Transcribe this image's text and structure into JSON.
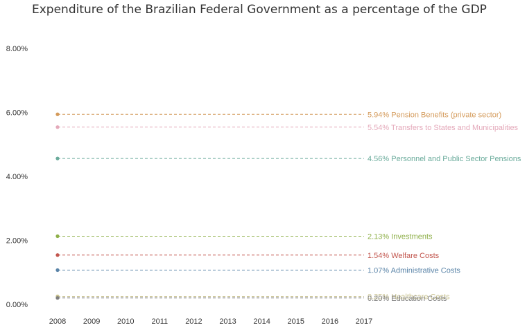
{
  "chart_data": {
    "type": "line",
    "title": "Expenditure of the Brazilian Federal Government as a percentage of the GDP",
    "xlabel": "",
    "ylabel": "",
    "x": [
      "2008",
      "2009",
      "2010",
      "2011",
      "2012",
      "2013",
      "2014",
      "2015",
      "2016",
      "2017"
    ],
    "ylim": [
      0,
      8
    ],
    "y_ticks": [
      "0.00%",
      "2.00%",
      "4.00%",
      "6.00%",
      "8.00%"
    ],
    "grid": false,
    "legend": "none",
    "series": [
      {
        "name": "Pension Benefits (private sector)",
        "label": "5.94% Pension Benefits (private sector)",
        "value": 5.94,
        "color": "#d49a5a",
        "values": [
          5.94,
          null,
          null,
          null,
          null,
          null,
          null,
          null,
          null,
          null
        ]
      },
      {
        "name": "Transfers to States and Municipalities",
        "label": "5.54% Transfers to States and Municipalities",
        "value": 5.54,
        "color": "#e4a9ba",
        "values": [
          5.54,
          null,
          null,
          null,
          null,
          null,
          null,
          null,
          null,
          null
        ]
      },
      {
        "name": "Personnel and Public Sector Pensions",
        "label": "4.56% Personnel and Public Sector Pensions",
        "value": 4.56,
        "color": "#6aab9b",
        "values": [
          4.56,
          null,
          null,
          null,
          null,
          null,
          null,
          null,
          null,
          null
        ]
      },
      {
        "name": "Investments",
        "label": "2.13% Investments",
        "value": 2.13,
        "color": "#8fb04a",
        "values": [
          2.13,
          null,
          null,
          null,
          null,
          null,
          null,
          null,
          null,
          null
        ]
      },
      {
        "name": "Welfare Costs",
        "label": "1.54% Welfare Costs",
        "value": 1.54,
        "color": "#c2564e",
        "values": [
          1.54,
          null,
          null,
          null,
          null,
          null,
          null,
          null,
          null,
          null
        ]
      },
      {
        "name": "Administrative Costs",
        "label": "1.07% Administrative Costs",
        "value": 1.07,
        "color": "#5a84a8",
        "values": [
          1.07,
          null,
          null,
          null,
          null,
          null,
          null,
          null,
          null,
          null
        ]
      },
      {
        "name": "Healthcare Costs",
        "label": "0.25% Healthcare Costs",
        "value": 0.25,
        "color": "#c6bf8a",
        "values": [
          0.25,
          null,
          null,
          null,
          null,
          null,
          null,
          null,
          null,
          null
        ]
      },
      {
        "name": "Education Costs",
        "label": "0.20% Education Costs",
        "value": 0.2,
        "color": "#7f7f7f",
        "values": [
          0.2,
          null,
          null,
          null,
          null,
          null,
          null,
          null,
          null,
          null
        ]
      }
    ]
  }
}
